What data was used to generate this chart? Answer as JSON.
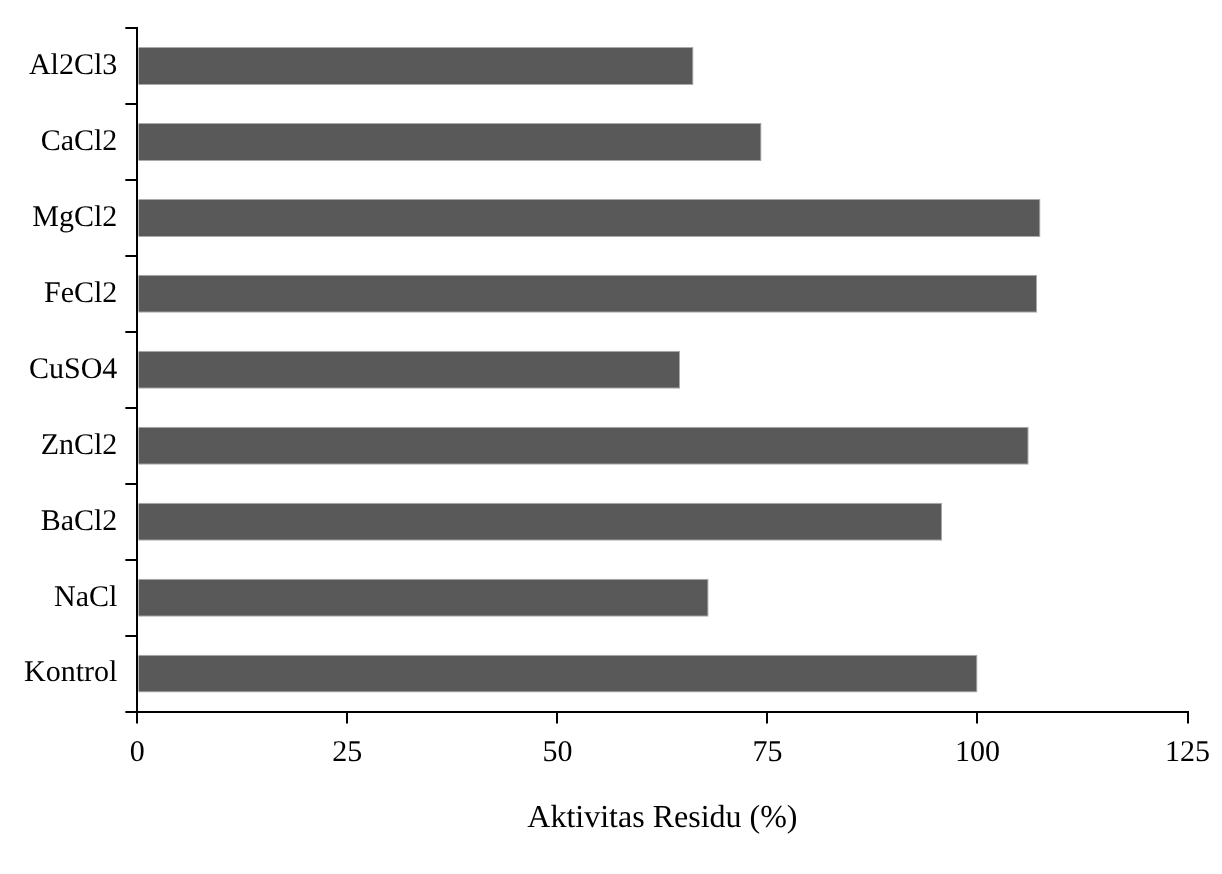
{
  "chart_data": {
    "type": "bar",
    "orientation": "horizontal",
    "xlabel": "Aktivitas Residu (%)",
    "categories": [
      "Al2Cl3",
      "CaCl2",
      "MgCl2",
      "FeCl2",
      "CuSO4",
      "ZnCl2",
      "BaCl2",
      "NaCl",
      "Kontrol"
    ],
    "values": [
      66.2,
      74.3,
      107.5,
      107.1,
      64.6,
      106.1,
      95.8,
      68,
      100
    ],
    "color": "#595959",
    "xlim": [
      0,
      125
    ],
    "xticks": [
      0,
      25,
      50,
      75,
      100,
      125
    ],
    "grid": false,
    "legend": false
  }
}
